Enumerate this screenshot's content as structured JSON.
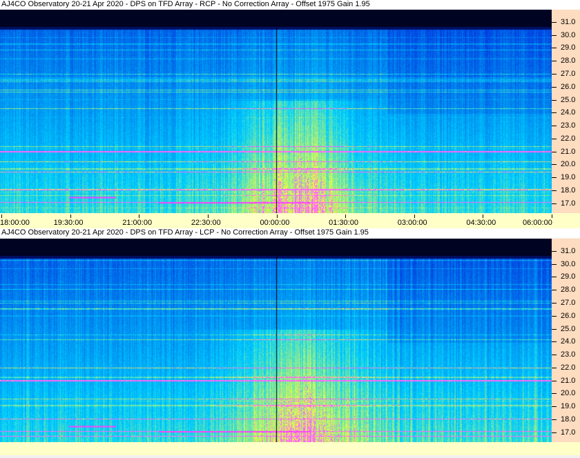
{
  "chart_data": [
    {
      "type": "heatmap",
      "title": "AJ4CO Observatory 20-21 Apr 2020 - DPS on TFD Array  - RCP  -  No Correction Array  -  Offset 1975  Gain 1.95",
      "x_ticks": [
        "18:00:00",
        "19:30:00",
        "21:00:00",
        "22:30:00",
        "00:00:00",
        "01:30:00",
        "03:00:00",
        "04:30:00",
        "06:00:00"
      ],
      "y_ticks": [
        "31.0",
        "30.0",
        "29.0",
        "28.0",
        "27.0",
        "26.0",
        "25.0",
        "24.0",
        "23.0",
        "22.0",
        "21.0",
        "20.0",
        "19.0",
        "18.0",
        "17.0"
      ],
      "ylim": [
        16.3,
        32.0
      ],
      "y_axis_position": "right",
      "marker_time": "00:00:00"
    },
    {
      "type": "heatmap",
      "title": "AJ4CO Observatory 20-21 Apr 2020 - DPS on TFD Array  - LCP  -  No Correction Array  -  Offset 1975  Gain 1.95",
      "x_ticks": [],
      "y_ticks": [
        "31.0",
        "30.0",
        "29.0",
        "28.0",
        "27.0",
        "26.0",
        "25.0",
        "24.0",
        "23.0",
        "22.0",
        "21.0",
        "20.0",
        "19.0",
        "18.0",
        "17.0"
      ],
      "ylim": [
        16.3,
        32.0
      ],
      "y_axis_position": "right",
      "marker_time": "00:00:00"
    }
  ],
  "colors": {
    "background_low": "#000010",
    "mid": "#0050e0",
    "high": "#40d0ff",
    "hot": "#ffff00",
    "peak": "#ff40ff",
    "axis_bg": "#fddcc0",
    "time_bg": "#ffffc8"
  }
}
